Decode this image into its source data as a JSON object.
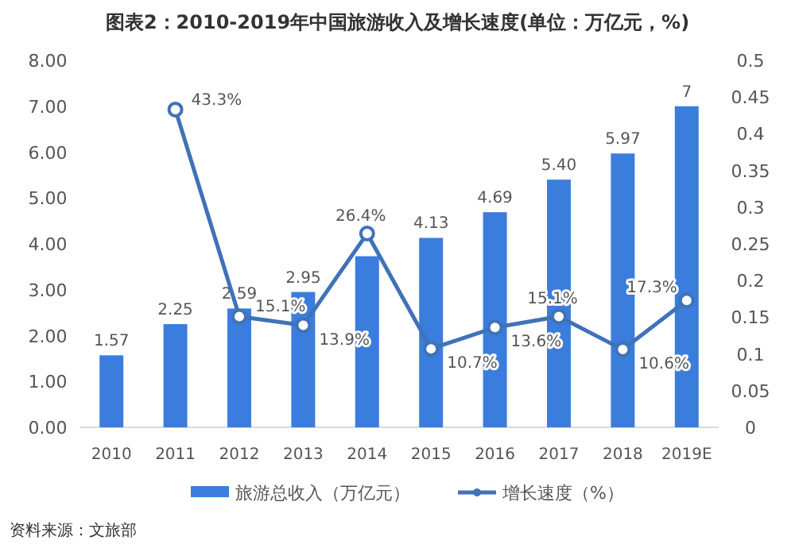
{
  "chart_data": {
    "type": "bar",
    "title": "图表2：2010-2019年中国旅游收入及增长速度(单位：万亿元，%)",
    "categories": [
      "2010",
      "2011",
      "2012",
      "2013",
      "2014",
      "2015",
      "2016",
      "2017",
      "2018",
      "2019E"
    ],
    "series": [
      {
        "name": "旅游总收入（万亿元）",
        "type": "bar",
        "color": "#3b7ddd",
        "values": [
          1.57,
          2.25,
          2.59,
          2.95,
          3.73,
          4.13,
          4.69,
          5.4,
          5.97,
          7
        ],
        "value_labels": [
          "1.57",
          "2.25",
          "2.59",
          "2.95",
          null,
          "4.13",
          "4.69",
          "5.40",
          "5.97",
          "7"
        ]
      },
      {
        "name": "增长速度（%）",
        "type": "line",
        "axis": "y2",
        "color": "#3f72b8",
        "marker": "circle",
        "values": [
          null,
          0.433,
          0.151,
          0.139,
          0.264,
          0.107,
          0.136,
          0.151,
          0.106,
          0.173
        ],
        "value_labels": [
          null,
          "43.3%",
          "15.1%",
          "13.9%",
          "26.4%",
          "10.7%",
          "13.6%",
          "15.1%",
          "10.6%",
          "17.3%"
        ]
      }
    ],
    "ylim": [
      0,
      8
    ],
    "yticks": [
      {
        "value": 0,
        "label": "0.00"
      },
      {
        "value": 1,
        "label": "1.00"
      },
      {
        "value": 2,
        "label": "2.00"
      },
      {
        "value": 3,
        "label": "3.00"
      },
      {
        "value": 4,
        "label": "4.00"
      },
      {
        "value": 5,
        "label": "5.00"
      },
      {
        "value": 6,
        "label": "6.00"
      },
      {
        "value": 7,
        "label": "7.00"
      },
      {
        "value": 8,
        "label": "8.00"
      }
    ],
    "y2lim": [
      0,
      0.5
    ],
    "y2ticks": [
      0,
      0.05,
      0.1,
      0.15,
      0.2,
      0.25,
      0.3,
      0.35,
      0.4,
      0.45,
      0.5
    ],
    "grid": false,
    "legend": "bottom",
    "annotations": [
      "资料来源：文旅部"
    ]
  }
}
